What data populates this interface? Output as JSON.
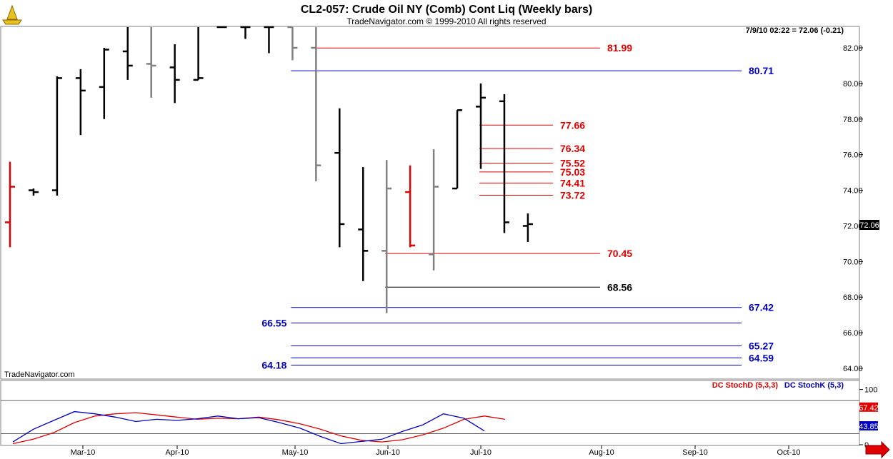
{
  "header": {
    "title": "CL2-057:  Crude Oil NY (Comb) Cont Liq  (Weekly bars)",
    "subtitle": "TradeNavigator.com © 1999-2010 All rights reserved",
    "last_quote": "7/9/10 02:22 = 72.06 (-0.21)",
    "watermark": "TradeNavigator.com",
    "price_tag": "72.06"
  },
  "colors": {
    "up": "#000000",
    "down": "#808080",
    "red": "#e00000",
    "blue": "#0000c0",
    "stoch_d": "#e00000",
    "stoch_k": "#0000c0"
  },
  "chart_data": {
    "type": "bar",
    "title": "CL2-057:  Crude Oil NY (Comb) Cont Liq  (Weekly bars)",
    "ylim": [
      63.7,
      83.5
    ],
    "y_ticks": [
      "82.00",
      "80.00",
      "78.00",
      "76.00",
      "74.00",
      "72.00",
      "70.00",
      "68.00",
      "66.00",
      "64.00"
    ],
    "x_ticks": [
      "Mar-10",
      "Apr-10",
      "May-10",
      "Jun-10",
      "Jul-10",
      "Aug-10",
      "Sep-10",
      "Oct-10"
    ],
    "bars": [
      {
        "color": "red",
        "high": 75.6,
        "low": 70.8,
        "open": 72.2,
        "close": 74.2
      },
      {
        "color": "black",
        "high": 74.1,
        "low": 73.7,
        "open": 74.0,
        "close": 73.9
      },
      {
        "color": "black",
        "high": 80.4,
        "low": 73.7,
        "open": 74.0,
        "close": 80.3
      },
      {
        "color": "black",
        "high": 80.8,
        "low": 77.1,
        "open": 80.3,
        "close": 79.6
      },
      {
        "color": "black",
        "high": 82.0,
        "low": 78.0,
        "open": 79.8,
        "close": 81.9
      },
      {
        "color": "black",
        "high": 83.4,
        "low": 80.2,
        "open": 81.8,
        "close": 81.0
      },
      {
        "color": "gray",
        "high": 83.3,
        "low": 79.2,
        "open": 81.1,
        "close": 81.0
      },
      {
        "color": "black",
        "high": 82.2,
        "low": 78.9,
        "open": 80.9,
        "close": 80.2
      },
      {
        "color": "black",
        "high": 83.4,
        "low": 80.2,
        "open": 80.2,
        "close": 80.3
      },
      {
        "color": "black",
        "high": 83.5,
        "low": 83.4,
        "open": 83.4,
        "close": 83.5
      },
      {
        "color": "black",
        "high": 83.5,
        "low": 82.5,
        "open": 83.5,
        "close": 83.4
      },
      {
        "color": "black",
        "high": 83.5,
        "low": 81.7,
        "open": 83.5,
        "close": 83.4
      },
      {
        "color": "gray",
        "high": 83.4,
        "low": 81.3,
        "open": 83.4,
        "close": 82.0
      },
      {
        "color": "gray",
        "high": 83.5,
        "low": 74.5,
        "open": 82.0,
        "close": 75.4
      },
      {
        "color": "black",
        "high": 78.6,
        "low": 70.8,
        "open": 76.1,
        "close": 72.1
      },
      {
        "color": "black",
        "high": 75.3,
        "low": 68.9,
        "open": 71.8,
        "close": 70.6
      },
      {
        "color": "gray",
        "high": 75.7,
        "low": 67.1,
        "open": 70.6,
        "close": 74.1
      },
      {
        "color": "red",
        "high": 75.4,
        "low": 70.8,
        "open": 73.9,
        "close": 70.9
      },
      {
        "color": "gray",
        "high": 76.3,
        "low": 69.5,
        "open": 70.4,
        "close": 74.2
      },
      {
        "color": "black",
        "high": 78.5,
        "low": 74.1,
        "open": 74.1,
        "close": 78.5
      },
      {
        "color": "black",
        "high": 80.0,
        "low": 75.2,
        "open": 78.7,
        "close": 79.2
      },
      {
        "color": "black",
        "high": 79.4,
        "low": 71.6,
        "open": 79.0,
        "close": 72.2
      },
      {
        "color": "black",
        "high": 72.7,
        "low": 71.1,
        "open": 72.0,
        "close": 72.1
      }
    ],
    "levels": [
      {
        "value": "81.99",
        "color": "red",
        "from_bar": 13,
        "to": "mid",
        "label_pos": "right"
      },
      {
        "value": "80.71",
        "color": "blue",
        "from_bar": 12,
        "to": "long",
        "label_pos": "right"
      },
      {
        "value": "77.66",
        "color": "red",
        "from_bar": 20,
        "to": "short",
        "label_pos": "right"
      },
      {
        "value": "76.34",
        "color": "red",
        "from_bar": 20,
        "to": "short",
        "label_pos": "right"
      },
      {
        "value": "75.52",
        "color": "red",
        "from_bar": 20,
        "to": "short",
        "label_pos": "right"
      },
      {
        "value": "75.03",
        "color": "red",
        "from_bar": 20,
        "to": "short",
        "label_pos": "right"
      },
      {
        "value": "74.41",
        "color": "red",
        "from_bar": 20,
        "to": "short",
        "label_pos": "right"
      },
      {
        "value": "73.72",
        "color": "red",
        "from_bar": 20,
        "to": "short",
        "label_pos": "right"
      },
      {
        "value": "70.45",
        "color": "red",
        "from_bar": 16,
        "to": "mid",
        "label_pos": "right"
      },
      {
        "value": "68.56",
        "color": "black",
        "from_bar": 16,
        "to": "mid",
        "label_pos": "right"
      },
      {
        "value": "67.42",
        "color": "blue",
        "from_bar": 12,
        "to": "long",
        "label_pos": "right"
      },
      {
        "value": "66.55",
        "color": "blue",
        "from_bar": 12,
        "to": "long",
        "label_pos": "left"
      },
      {
        "value": "65.27",
        "color": "blue",
        "from_bar": 12,
        "to": "long",
        "label_pos": "right"
      },
      {
        "value": "64.59",
        "color": "blue",
        "from_bar": 12,
        "to": "long",
        "label_pos": "right"
      },
      {
        "value": "64.18",
        "color": "blue",
        "from_bar": 12,
        "to": "long",
        "label_pos": "left"
      }
    ],
    "stochastic": {
      "legend_d": "DC StochD (5,3,3)",
      "legend_k": "DC StochK (5,3)",
      "ylim": [
        0,
        115
      ],
      "y_ticks": [
        "100",
        "0"
      ],
      "ref_levels": [
        80,
        20
      ],
      "d_value": "67.42",
      "k_value": "43.85",
      "stoch_d": [
        2,
        10,
        22,
        40,
        52,
        56,
        58,
        54,
        50,
        46,
        48,
        47,
        50,
        45,
        38,
        28,
        16,
        8,
        5,
        9,
        18,
        30,
        46,
        52,
        46
      ],
      "stoch_k": [
        5,
        28,
        44,
        60,
        56,
        50,
        42,
        46,
        44,
        47,
        52,
        47,
        49,
        40,
        30,
        15,
        2,
        6,
        10,
        24,
        36,
        56,
        48,
        25
      ]
    }
  }
}
